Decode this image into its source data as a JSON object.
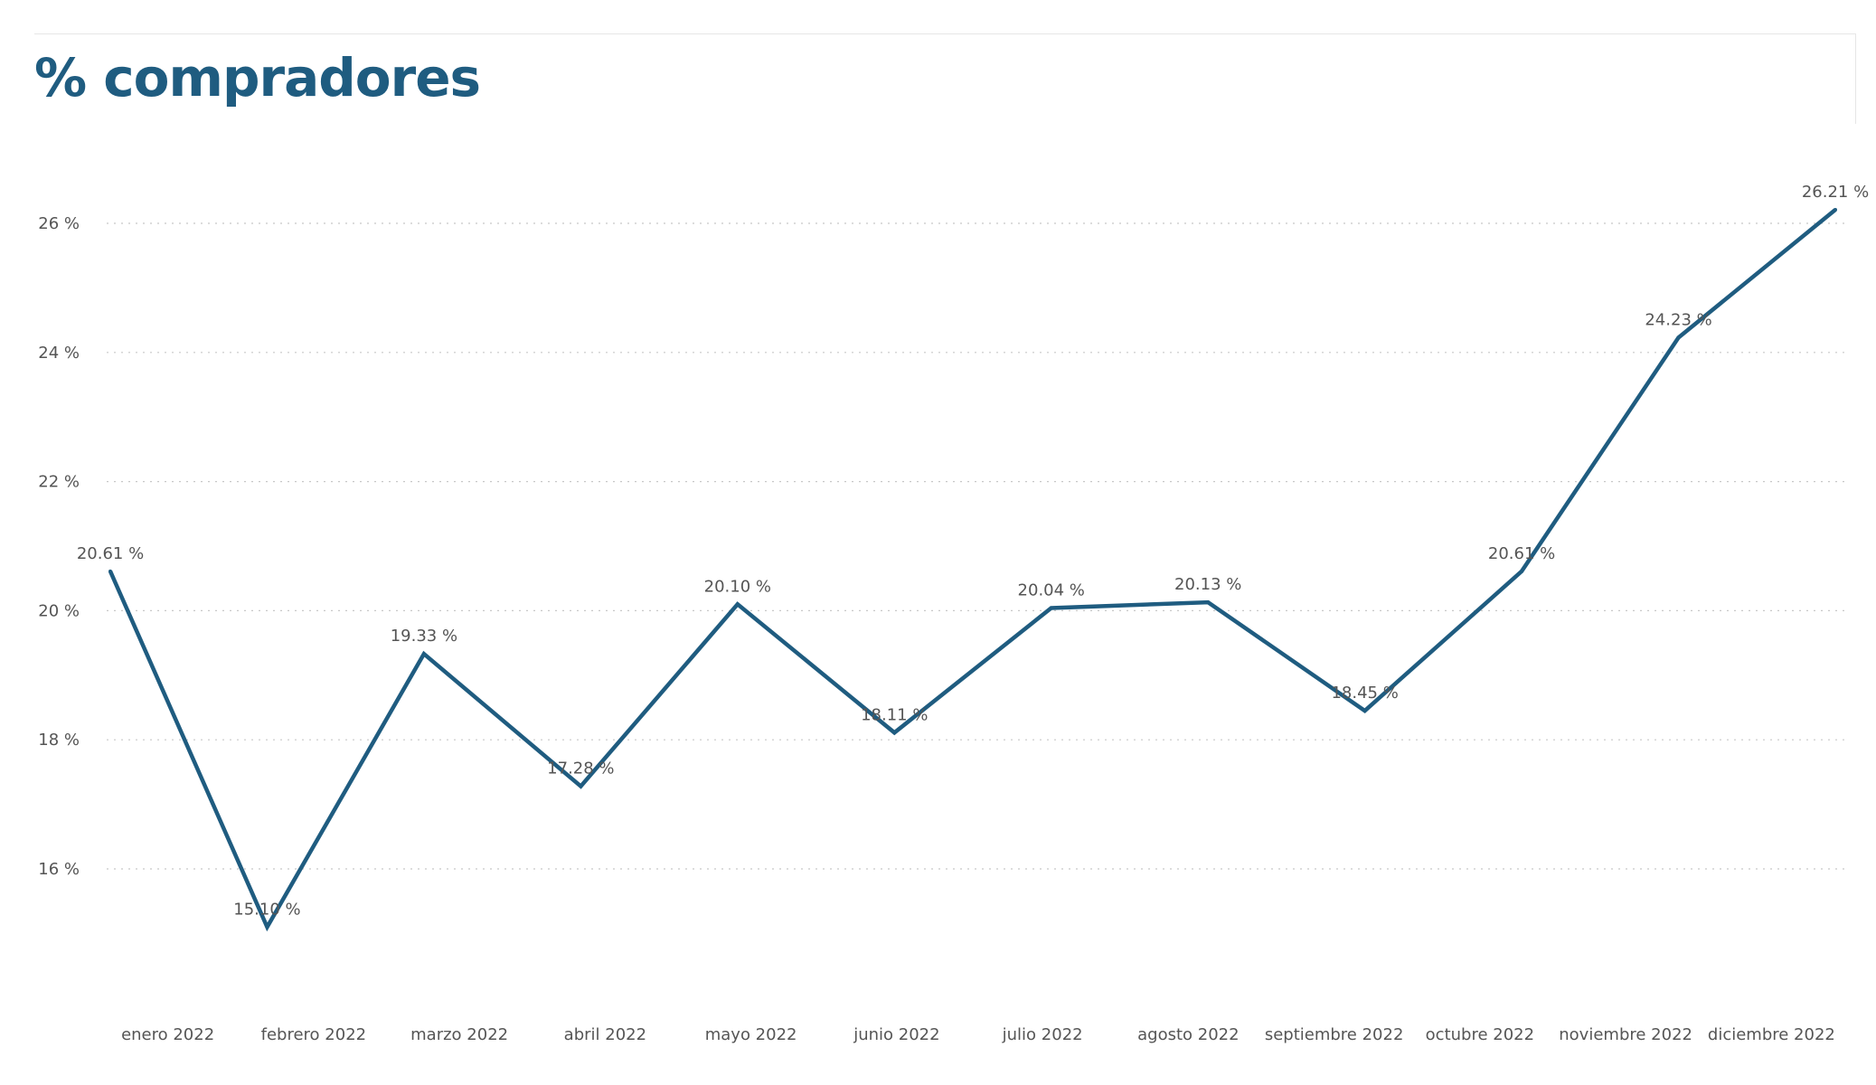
{
  "chart_data": {
    "type": "line",
    "title": "% compradores",
    "xlabel": "",
    "ylabel": "",
    "categories": [
      "enero 2022",
      "febrero 2022",
      "marzo 2022",
      "abril 2022",
      "mayo 2022",
      "junio 2022",
      "julio 2022",
      "agosto 2022",
      "septiembre 2022",
      "octubre 2022",
      "noviembre 2022",
      "diciembre 2022"
    ],
    "series": [
      {
        "values": [
          20.61,
          15.1,
          19.33,
          17.28,
          20.1,
          18.11,
          20.04,
          20.13,
          18.45,
          20.61,
          24.23,
          26.21
        ],
        "data_labels": [
          "20.61 %",
          "15.10 %",
          "19.33 %",
          "17.28 %",
          "20.10 %",
          "18.11 %",
          "20.04 %",
          "20.13 %",
          "18.45 %",
          "20.61 %",
          "24.23 %",
          "26.21 %"
        ],
        "color": "#1f5c80"
      }
    ],
    "yticks": [
      16,
      18,
      20,
      22,
      24,
      26
    ],
    "ytick_labels": [
      "16 %",
      "18 %",
      "20 %",
      "22 %",
      "24 %",
      "26 %"
    ],
    "ylim": [
      13.6,
      27.6
    ],
    "grid": true,
    "legend": "none"
  }
}
